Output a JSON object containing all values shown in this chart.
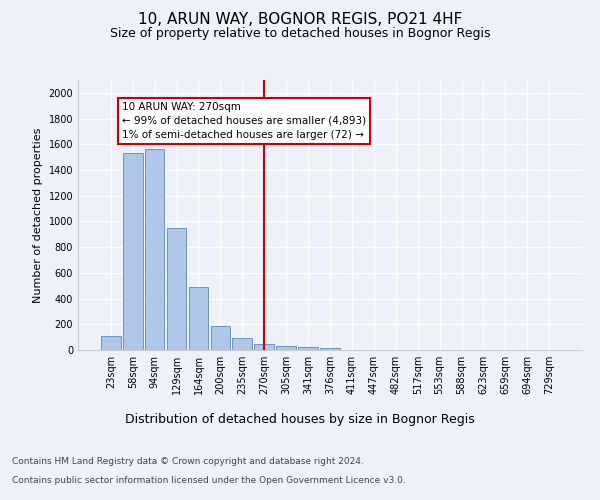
{
  "title": "10, ARUN WAY, BOGNOR REGIS, PO21 4HF",
  "subtitle": "Size of property relative to detached houses in Bognor Regis",
  "xlabel": "Distribution of detached houses by size in Bognor Regis",
  "ylabel": "Number of detached properties",
  "categories": [
    "23sqm",
    "58sqm",
    "94sqm",
    "129sqm",
    "164sqm",
    "200sqm",
    "235sqm",
    "270sqm",
    "305sqm",
    "341sqm",
    "376sqm",
    "411sqm",
    "447sqm",
    "482sqm",
    "517sqm",
    "553sqm",
    "588sqm",
    "623sqm",
    "659sqm",
    "694sqm",
    "729sqm"
  ],
  "values": [
    110,
    1535,
    1560,
    950,
    490,
    185,
    95,
    45,
    35,
    20,
    15,
    0,
    0,
    0,
    0,
    0,
    0,
    0,
    0,
    0,
    0
  ],
  "bar_color": "#aec6e8",
  "bar_edge_color": "#5b8db8",
  "vline_x": 7,
  "vline_color": "#cc0000",
  "annotation_text": "10 ARUN WAY: 270sqm\n← 99% of detached houses are smaller (4,893)\n1% of semi-detached houses are larger (72) →",
  "annotation_box_color": "#cc0000",
  "ylim": [
    0,
    2100
  ],
  "yticks": [
    0,
    200,
    400,
    600,
    800,
    1000,
    1200,
    1400,
    1600,
    1800,
    2000
  ],
  "background_color": "#eef0fa",
  "grid_color": "#ffffff",
  "footer_line1": "Contains HM Land Registry data © Crown copyright and database right 2024.",
  "footer_line2": "Contains public sector information licensed under the Open Government Licence v3.0.",
  "title_fontsize": 11,
  "subtitle_fontsize": 9,
  "xlabel_fontsize": 9,
  "ylabel_fontsize": 8,
  "tick_fontsize": 7,
  "annotation_fontsize": 7.5,
  "footer_fontsize": 6.5
}
